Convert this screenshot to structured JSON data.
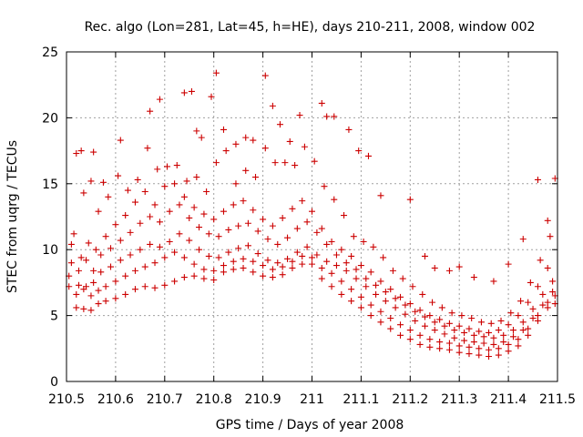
{
  "chart_data": {
    "type": "scatter",
    "title": "Rec. algo (Lon=281, Lat=45, h=HE), days 210-211, 2008, window 002",
    "xlabel": "GPS time / Days of year 2008",
    "ylabel": "STEC from uqrg / TECUs",
    "xlim": [
      210.5,
      211.5
    ],
    "ylim": [
      0,
      25
    ],
    "xticks": [
      210.5,
      210.6,
      210.7,
      210.8,
      210.9,
      211,
      211.1,
      211.2,
      211.3,
      211.4,
      211.5
    ],
    "xtick_labels": [
      "210.5",
      "210.6",
      "210.7",
      "210.8",
      "210.9",
      "211",
      "211.1",
      "211.2",
      "211.3",
      "211.4",
      "211.5"
    ],
    "yticks": [
      0,
      5,
      10,
      15,
      20,
      25
    ],
    "ytick_labels": [
      "0",
      "5",
      "10",
      "15",
      "20",
      "25"
    ],
    "grid": true,
    "legend": "none",
    "marker": "plus",
    "color": "#cc0000",
    "series": [
      {
        "x": [
          210.505,
          210.52,
          210.535,
          210.55,
          210.565,
          210.58,
          210.6,
          210.62,
          210.64,
          210.66,
          210.68,
          210.7,
          210.72,
          210.74,
          210.76,
          210.78,
          210.8,
          210.82,
          210.84,
          210.86,
          210.88,
          210.9,
          210.92,
          210.94,
          210.96,
          210.98,
          211.0,
          211.02,
          211.04,
          211.06,
          211.08,
          211.1,
          211.12,
          211.14,
          211.16,
          211.18,
          211.2,
          211.22,
          211.24,
          211.26,
          211.28,
          211.3,
          211.32,
          211.34,
          211.36,
          211.38,
          211.4,
          211.42,
          211.44,
          211.46,
          211.48,
          211.495
        ],
        "y": [
          7.2,
          5.6,
          5.5,
          5.4,
          5.9,
          6.1,
          6.3,
          6.6,
          7.0,
          7.2,
          7.1,
          7.3,
          7.6,
          7.9,
          8.0,
          7.8,
          7.7,
          8.3,
          8.5,
          8.6,
          8.3,
          8.0,
          7.9,
          8.1,
          8.6,
          8.9,
          8.9,
          7.8,
          7.2,
          6.6,
          6.1,
          5.6,
          5.0,
          4.5,
          4.0,
          3.5,
          3.2,
          2.8,
          2.6,
          2.5,
          2.4,
          2.2,
          2.1,
          2.0,
          1.9,
          2.0,
          2.3,
          2.7,
          3.5,
          4.6,
          5.6,
          5.9
        ]
      },
      {
        "x": [
          210.505,
          210.52,
          210.535,
          210.55,
          210.565,
          210.58,
          210.6,
          210.62,
          210.64,
          210.66,
          210.68,
          210.7,
          210.72,
          210.74,
          210.76,
          210.78,
          210.8,
          210.82,
          210.84,
          210.86,
          210.88,
          210.9,
          210.92,
          210.94,
          210.96,
          210.98,
          211.0,
          211.02,
          211.04,
          211.06,
          211.08,
          211.1,
          211.12,
          211.14,
          211.16,
          211.18,
          211.2,
          211.22,
          211.24,
          211.26,
          211.28,
          211.3,
          211.32,
          211.34,
          211.36,
          211.38,
          211.4,
          211.42,
          211.44,
          211.46,
          211.48,
          211.495
        ],
        "y": [
          8.0,
          6.6,
          7.0,
          6.5,
          6.9,
          7.2,
          7.6,
          8.0,
          8.4,
          8.7,
          9.0,
          9.4,
          9.8,
          9.4,
          8.9,
          8.5,
          8.4,
          8.8,
          9.1,
          9.3,
          9.1,
          8.8,
          8.5,
          8.7,
          9.1,
          9.5,
          9.4,
          8.6,
          8.2,
          7.6,
          7.0,
          6.4,
          5.8,
          5.3,
          4.8,
          4.3,
          3.9,
          3.5,
          3.2,
          3.0,
          2.9,
          2.7,
          2.6,
          2.5,
          2.4,
          2.5,
          2.8,
          3.2,
          4.0,
          5.0,
          6.0,
          6.5
        ]
      },
      {
        "x": [
          210.51,
          210.525,
          210.54,
          210.555,
          210.57,
          210.59,
          210.61,
          210.63,
          210.65,
          210.67,
          210.69,
          210.71,
          210.73,
          210.75,
          210.77,
          210.79,
          210.81,
          210.83,
          210.85,
          210.87,
          210.89,
          210.91,
          210.93,
          210.95,
          210.97,
          210.99,
          211.01,
          211.03,
          211.05,
          211.07,
          211.09,
          211.11,
          211.13,
          211.15,
          211.17,
          211.19,
          211.21,
          211.23,
          211.25,
          211.27,
          211.29,
          211.31,
          211.33,
          211.35,
          211.37,
          211.39,
          211.41,
          211.43,
          211.45,
          211.47,
          211.49
        ],
        "y": [
          9.0,
          7.3,
          7.2,
          7.5,
          8.3,
          8.7,
          9.2,
          9.6,
          10.0,
          10.4,
          10.2,
          10.6,
          11.2,
          10.7,
          10.0,
          9.5,
          9.4,
          9.8,
          10.1,
          10.3,
          9.7,
          9.2,
          9.0,
          9.3,
          9.8,
          10.2,
          9.6,
          9.1,
          8.8,
          8.4,
          7.8,
          7.2,
          6.6,
          6.1,
          5.6,
          5.1,
          4.6,
          4.2,
          3.9,
          3.6,
          3.3,
          3.1,
          3.0,
          2.9,
          2.8,
          3.0,
          3.4,
          3.9,
          4.8,
          5.8,
          6.8
        ]
      },
      {
        "x": [
          210.51,
          210.525,
          210.54,
          210.555,
          210.57,
          210.59,
          210.61,
          210.63,
          210.65,
          210.67,
          210.69,
          210.71,
          210.73,
          210.75,
          210.77,
          210.79,
          210.81,
          210.83,
          210.85,
          210.87,
          210.89,
          210.91,
          210.93,
          210.95,
          210.97,
          210.99,
          211.01,
          211.03,
          211.05,
          211.07,
          211.09,
          211.11,
          211.13,
          211.15,
          211.17,
          211.19,
          211.21,
          211.23,
          211.25,
          211.27,
          211.29,
          211.31,
          211.33,
          211.35,
          211.37,
          211.39,
          211.41,
          211.43,
          211.45,
          211.47,
          211.49
        ],
        "y": [
          10.4,
          8.4,
          9.2,
          8.4,
          9.6,
          10.1,
          10.7,
          11.3,
          12.0,
          12.5,
          12.1,
          12.9,
          13.4,
          12.4,
          11.7,
          11.2,
          11.0,
          11.5,
          11.8,
          12.0,
          11.4,
          10.8,
          10.4,
          10.9,
          11.6,
          12.1,
          11.3,
          10.4,
          9.6,
          9.0,
          8.5,
          7.8,
          7.3,
          6.8,
          6.3,
          5.8,
          5.3,
          4.9,
          4.5,
          4.2,
          3.9,
          3.7,
          3.5,
          3.4,
          3.3,
          3.5,
          3.9,
          4.5,
          5.5,
          6.6,
          7.6
        ]
      },
      {
        "x": [
          210.515,
          210.53,
          210.545,
          210.56,
          210.58,
          210.6,
          210.62,
          210.64,
          210.66,
          210.68,
          210.7,
          210.72,
          210.74,
          210.76,
          210.78,
          210.8,
          210.82,
          210.84,
          210.86,
          210.88,
          210.9,
          210.92,
          210.94,
          210.96,
          210.98,
          211.0,
          211.02,
          211.04,
          211.06,
          211.08,
          211.1,
          211.12,
          211.14,
          211.16,
          211.18,
          211.2,
          211.22,
          211.24,
          211.26,
          211.28,
          211.3,
          211.32,
          211.34,
          211.36,
          211.38,
          211.4,
          211.42,
          211.44,
          211.46,
          211.48
        ],
        "y": [
          11.2,
          9.4,
          10.5,
          10.0,
          11.0,
          11.9,
          12.6,
          13.6,
          14.4,
          13.4,
          14.8,
          15.0,
          14.0,
          13.2,
          12.7,
          12.3,
          12.9,
          13.4,
          13.7,
          13.0,
          12.3,
          11.8,
          12.4,
          13.1,
          13.7,
          12.9,
          11.6,
          10.6,
          10.0,
          9.5,
          8.8,
          8.3,
          7.6,
          7.0,
          6.4,
          5.9,
          5.4,
          5.0,
          4.7,
          4.4,
          4.2,
          4.0,
          3.8,
          3.7,
          3.9,
          4.3,
          5.0,
          6.0,
          7.2,
          8.6
        ]
      },
      {
        "x": [
          210.52,
          210.535,
          210.55,
          210.565,
          210.585,
          210.605,
          210.625,
          210.645,
          210.665,
          210.685,
          210.705,
          210.725,
          210.745,
          210.765,
          210.785,
          210.805,
          210.825,
          210.845,
          210.865,
          210.885,
          210.905,
          210.925,
          210.945,
          210.965,
          210.985,
          211.005,
          211.025,
          211.045,
          211.065,
          211.085,
          211.105,
          211.125,
          211.145,
          211.165,
          211.185,
          211.205,
          211.225,
          211.245,
          211.265,
          211.285,
          211.305,
          211.325,
          211.345,
          211.365,
          211.385,
          211.405,
          211.425,
          211.445,
          211.465,
          211.485
        ],
        "y": [
          17.3,
          14.3,
          15.2,
          12.9,
          14.0,
          15.6,
          14.5,
          15.3,
          17.7,
          16.1,
          16.3,
          16.4,
          15.2,
          15.5,
          14.4,
          16.6,
          17.5,
          15.0,
          16.0,
          15.5,
          17.7,
          16.6,
          16.6,
          16.4,
          17.8,
          16.7,
          14.8,
          13.8,
          12.6,
          11.0,
          10.6,
          10.2,
          9.4,
          8.4,
          7.8,
          7.2,
          6.6,
          6.0,
          5.6,
          5.2,
          5.0,
          4.8,
          4.5,
          4.4,
          4.6,
          5.2,
          6.1,
          7.5,
          9.2,
          11.0
        ]
      },
      {
        "x": [
          210.53,
          210.555,
          210.575,
          210.61,
          210.67,
          210.69,
          210.74,
          210.755,
          210.765,
          210.775,
          210.795,
          210.805,
          210.82,
          210.845,
          210.865,
          210.88,
          210.905,
          210.92,
          210.935,
          210.955,
          210.975,
          211.02,
          211.03,
          211.045,
          211.075,
          211.095,
          211.115,
          211.14,
          211.2,
          211.23,
          211.25,
          211.28,
          211.3,
          211.33,
          211.37,
          211.4,
          211.43,
          211.46,
          211.48,
          211.495
        ],
        "y": [
          17.5,
          17.4,
          15.1,
          18.3,
          20.5,
          21.4,
          21.9,
          22.0,
          19.0,
          18.5,
          21.6,
          23.4,
          19.1,
          18.0,
          18.5,
          18.3,
          23.2,
          20.9,
          19.5,
          18.2,
          20.2,
          21.1,
          20.1,
          20.1,
          19.1,
          17.5,
          17.1,
          14.1,
          13.8,
          9.5,
          8.6,
          8.4,
          8.7,
          7.9,
          7.6,
          8.9,
          10.8,
          15.3,
          12.2,
          15.4
        ]
      }
    ]
  }
}
